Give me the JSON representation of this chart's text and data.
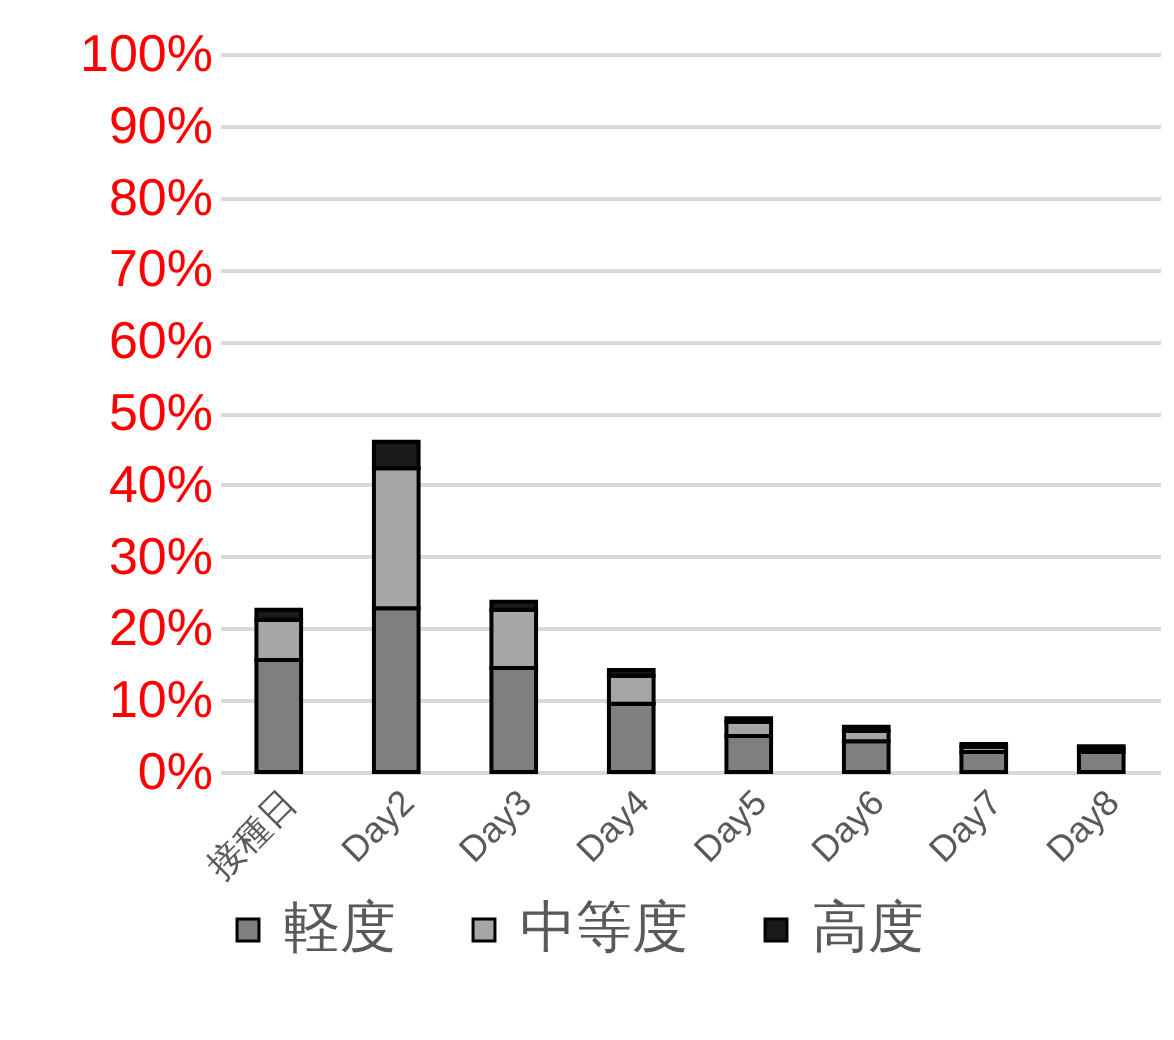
{
  "chart_data": {
    "type": "bar",
    "stacked": true,
    "categories": [
      "接種日",
      "Day2",
      "Day3",
      "Day4",
      "Day5",
      "Day6",
      "Day7",
      "Day8"
    ],
    "series": [
      {
        "name": "軽度",
        "color": "#7f7f7f",
        "values": [
          15.6,
          22.8,
          14.5,
          9.5,
          5.0,
          4.3,
          2.8,
          2.8
        ]
      },
      {
        "name": "中等度",
        "color": "#a6a6a6",
        "values": [
          5.6,
          19.5,
          8.1,
          3.9,
          2.0,
          1.4,
          0.7,
          0.5
        ]
      },
      {
        "name": "高度",
        "color": "#1a1a1a",
        "values": [
          1.4,
          3.7,
          1.1,
          0.8,
          0.5,
          0.6,
          0.4,
          0.3
        ]
      }
    ],
    "ylim": [
      0,
      100
    ],
    "yticks": [
      {
        "value": 0,
        "label": "0%"
      },
      {
        "value": 10,
        "label": "10%"
      },
      {
        "value": 20,
        "label": "20%"
      },
      {
        "value": 30,
        "label": "30%"
      },
      {
        "value": 40,
        "label": "40%"
      },
      {
        "value": 50,
        "label": "50%"
      },
      {
        "value": 60,
        "label": "60%"
      },
      {
        "value": 70,
        "label": "70%"
      },
      {
        "value": 80,
        "label": "80%"
      },
      {
        "value": 90,
        "label": "90%"
      },
      {
        "value": 100,
        "label": "100%"
      }
    ],
    "grid": "y",
    "legend": "bottom"
  }
}
